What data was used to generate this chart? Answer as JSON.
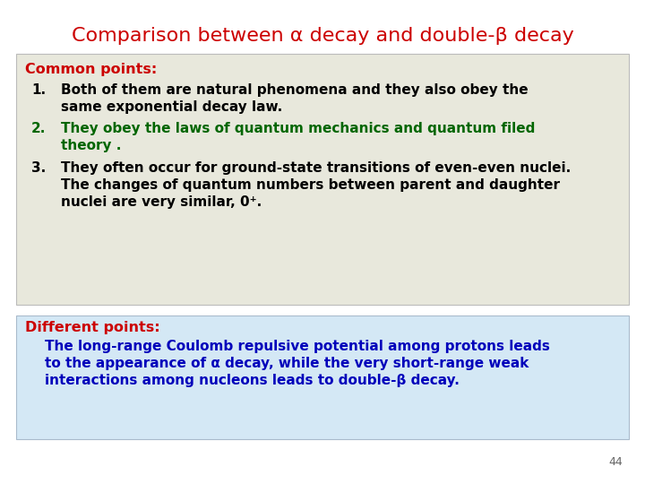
{
  "title": "Comparison between α decay and double-β decay",
  "title_color": "#cc0000",
  "title_fontsize": 16,
  "bg_color": "#ffffff",
  "common_box_color": "#e8e8dc",
  "different_box_color": "#d4e8f5",
  "common_label": "Common points:",
  "common_label_color": "#cc0000",
  "common_label_fontsize": 11.5,
  "point1_number": "1.",
  "point1_text_line1": "Both of them are natural phenomena and they also obey the",
  "point1_text_line2": "same exponential decay law.",
  "point1_color": "#000000",
  "point2_number": "2.",
  "point2_text_line1": "They obey the laws of quantum mechanics and quantum filed",
  "point2_text_line2": "theory .",
  "point2_color": "#006600",
  "point3_number": "3.",
  "point3_text_line1": "They often occur for ground-state transitions of even-even nuclei.",
  "point3_text_line2": "The changes of quantum numbers between parent and daughter",
  "point3_text_line3": "nuclei are very similar, 0⁺.",
  "point3_color": "#000000",
  "different_label": "Different points:",
  "different_label_color": "#cc0000",
  "different_label_fontsize": 11.5,
  "different_text_line1": "The long-range Coulomb repulsive potential among protons leads",
  "different_text_line2": "to the appearance of α decay, while the very short-range weak",
  "different_text_line3": "interactions among nucleons leads to double-β decay.",
  "different_text_color": "#0000bb",
  "page_number": "44",
  "body_fontsize": 11
}
